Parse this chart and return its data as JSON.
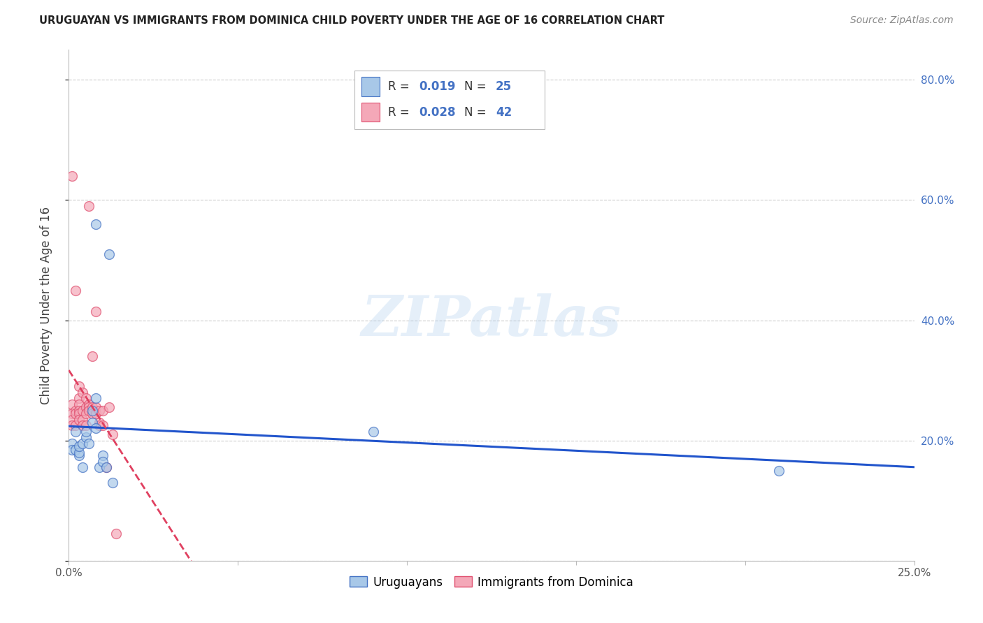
{
  "title": "URUGUAYAN VS IMMIGRANTS FROM DOMINICA CHILD POVERTY UNDER THE AGE OF 16 CORRELATION CHART",
  "source": "Source: ZipAtlas.com",
  "ylabel": "Child Poverty Under the Age of 16",
  "xlim": [
    0.0,
    0.25
  ],
  "ylim": [
    0.0,
    0.85
  ],
  "right_yticks": [
    0.2,
    0.4,
    0.6,
    0.8
  ],
  "right_ytick_labels": [
    "20.0%",
    "40.0%",
    "60.0%",
    "80.0%"
  ],
  "xtick_positions": [
    0.0,
    0.05,
    0.1,
    0.15,
    0.2,
    0.25
  ],
  "xtick_labels": [
    "0.0%",
    "",
    "",
    "",
    "",
    "25.0%"
  ],
  "legend_label1": "Uruguayans",
  "legend_label2": "Immigrants from Dominica",
  "blue_fill": "#a8c8e8",
  "blue_edge": "#4472c4",
  "pink_fill": "#f4a8b8",
  "pink_edge": "#e05070",
  "blue_line": "#2255cc",
  "pink_line": "#e04060",
  "marker_size": 100,
  "watermark": "ZIPatlas",
  "background_color": "#ffffff",
  "grid_color": "#cccccc",
  "uruguayan_x": [
    0.001,
    0.001,
    0.002,
    0.002,
    0.003,
    0.003,
    0.003,
    0.004,
    0.004,
    0.005,
    0.005,
    0.006,
    0.007,
    0.007,
    0.008,
    0.008,
    0.008,
    0.009,
    0.01,
    0.01,
    0.011,
    0.012,
    0.013,
    0.09,
    0.21
  ],
  "uruguayan_y": [
    0.195,
    0.185,
    0.185,
    0.215,
    0.175,
    0.18,
    0.19,
    0.155,
    0.195,
    0.205,
    0.215,
    0.195,
    0.25,
    0.23,
    0.27,
    0.56,
    0.22,
    0.155,
    0.175,
    0.165,
    0.155,
    0.51,
    0.13,
    0.215,
    0.15
  ],
  "dominica_x": [
    0.001,
    0.001,
    0.001,
    0.001,
    0.001,
    0.002,
    0.002,
    0.002,
    0.002,
    0.003,
    0.003,
    0.003,
    0.003,
    0.003,
    0.003,
    0.004,
    0.004,
    0.004,
    0.004,
    0.005,
    0.005,
    0.005,
    0.005,
    0.006,
    0.006,
    0.006,
    0.006,
    0.007,
    0.007,
    0.007,
    0.008,
    0.008,
    0.008,
    0.009,
    0.009,
    0.009,
    0.01,
    0.01,
    0.011,
    0.012,
    0.013,
    0.014
  ],
  "dominica_y": [
    0.64,
    0.26,
    0.245,
    0.235,
    0.225,
    0.45,
    0.25,
    0.245,
    0.225,
    0.29,
    0.27,
    0.26,
    0.25,
    0.245,
    0.235,
    0.28,
    0.25,
    0.235,
    0.225,
    0.27,
    0.255,
    0.245,
    0.225,
    0.26,
    0.255,
    0.25,
    0.59,
    0.34,
    0.255,
    0.245,
    0.415,
    0.255,
    0.245,
    0.25,
    0.23,
    0.225,
    0.25,
    0.225,
    0.155,
    0.255,
    0.21,
    0.045
  ]
}
